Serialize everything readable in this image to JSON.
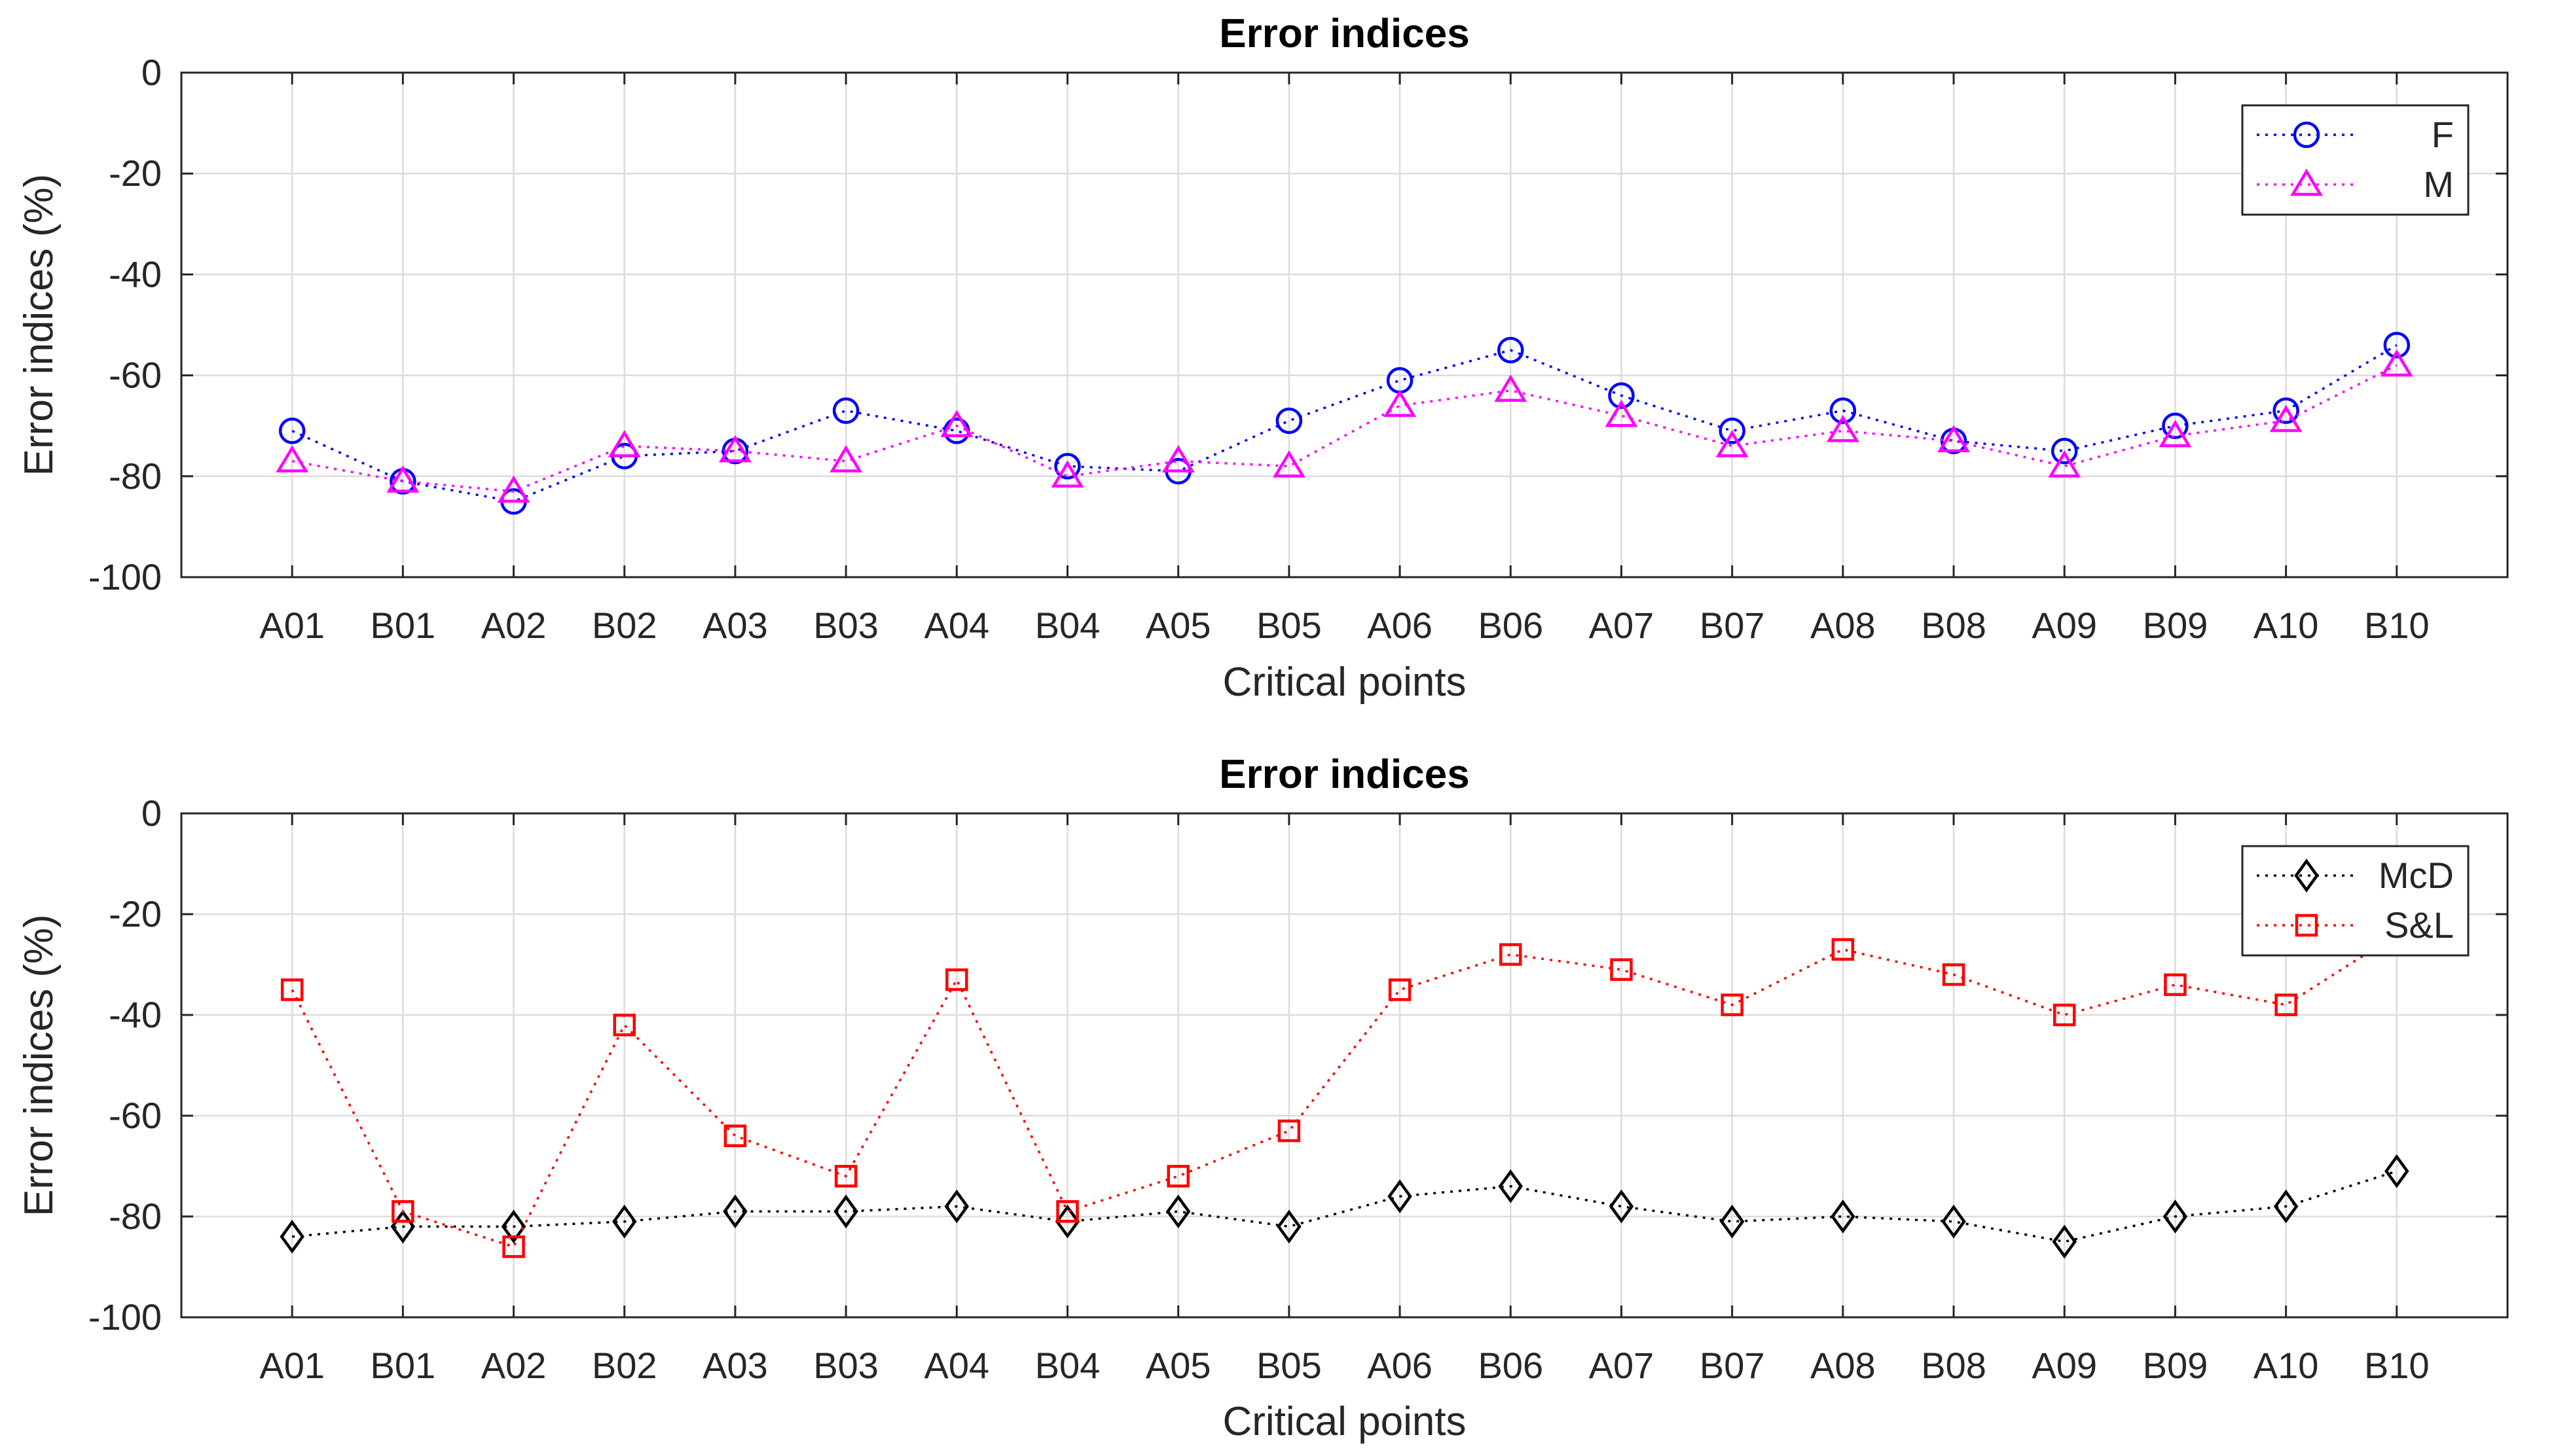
{
  "chart_data": [
    {
      "type": "line",
      "title": "Error indices",
      "xlabel": "Critical points",
      "ylabel": "Error indices (%)",
      "ylim": [
        -100,
        0
      ],
      "yticks": [
        0,
        -20,
        -40,
        -60,
        -80,
        -100
      ],
      "grid": true,
      "legend_position": "top-right",
      "categories": [
        "A01",
        "B01",
        "A02",
        "B02",
        "A03",
        "B03",
        "A04",
        "B04",
        "A05",
        "B05",
        "A06",
        "B06",
        "A07",
        "B07",
        "A08",
        "B08",
        "A09",
        "B09",
        "A10",
        "B10"
      ],
      "series": [
        {
          "name": "F",
          "color": "#0000ff",
          "marker": "circle",
          "values": [
            -71,
            -81,
            -85,
            -76,
            -75,
            -67,
            -71,
            -78,
            -79,
            -69,
            -61,
            -55,
            -64,
            -71,
            -67,
            -73,
            -75,
            -70,
            -67,
            -54
          ]
        },
        {
          "name": "M",
          "color": "#ff00ff",
          "marker": "triangle",
          "values": [
            -77,
            -81,
            -83,
            -74,
            -75,
            -77,
            -70,
            -80,
            -77,
            -78,
            -66,
            -63,
            -68,
            -74,
            -71,
            -73,
            -78,
            -72,
            -69,
            -58
          ]
        }
      ]
    },
    {
      "type": "line",
      "title": "Error indices",
      "xlabel": "Critical points",
      "ylabel": "Error indices (%)",
      "ylim": [
        -100,
        0
      ],
      "yticks": [
        0,
        -20,
        -40,
        -60,
        -80,
        -100
      ],
      "grid": true,
      "legend_position": "top-right",
      "categories": [
        "A01",
        "B01",
        "A02",
        "B02",
        "A03",
        "B03",
        "A04",
        "B04",
        "A05",
        "B05",
        "A06",
        "B06",
        "A07",
        "B07",
        "A08",
        "B08",
        "A09",
        "B09",
        "A10",
        "B10"
      ],
      "series": [
        {
          "name": "McD",
          "color": "#000000",
          "marker": "diamond",
          "values": [
            -84,
            -82,
            -82,
            -81,
            -79,
            -79,
            -78,
            -81,
            -79,
            -82,
            -76,
            -74,
            -78,
            -81,
            -80,
            -81,
            -85,
            -80,
            -78,
            -71
          ]
        },
        {
          "name": "S&L",
          "color": "#ff0000",
          "marker": "square",
          "values": [
            -35,
            -79,
            -86,
            -42,
            -64,
            -72,
            -33,
            -79,
            -72,
            -63,
            -35,
            -28,
            -31,
            -38,
            -27,
            -32,
            -40,
            -34,
            -38,
            -24
          ]
        }
      ]
    }
  ]
}
